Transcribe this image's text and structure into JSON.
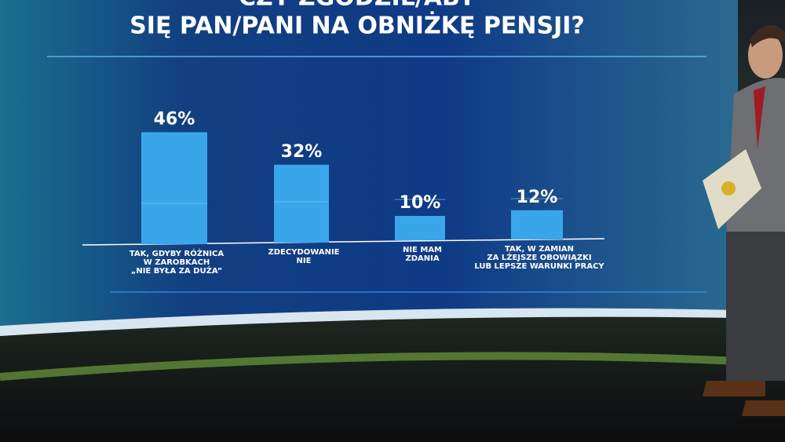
{
  "chart_data": {
    "type": "bar",
    "title": [
      "CZY ZGODZIŁ/ABY",
      "SIĘ PAN/PANI NA OBNIŻKĘ PENSJI?"
    ],
    "categories": [
      [
        "TAK, GDYBY RÓŻNICA",
        "W ZAROBKACH",
        "„NIE BYŁA ZA DUŻA”"
      ],
      [
        "ZDECYDOWANIE",
        "NIE"
      ],
      [
        "NIE MAM",
        "ZDANIA"
      ],
      [
        "TAK, W ZAMIAN",
        "ZA LŻEJSZE OBOWIĄZKI",
        "LUB LEPSZE WARUNKI PRACY"
      ]
    ],
    "values": [
      46,
      32,
      10,
      12
    ],
    "value_labels": [
      "46%",
      "32%",
      "10%",
      "12%"
    ],
    "color": "#3aa6ea"
  }
}
